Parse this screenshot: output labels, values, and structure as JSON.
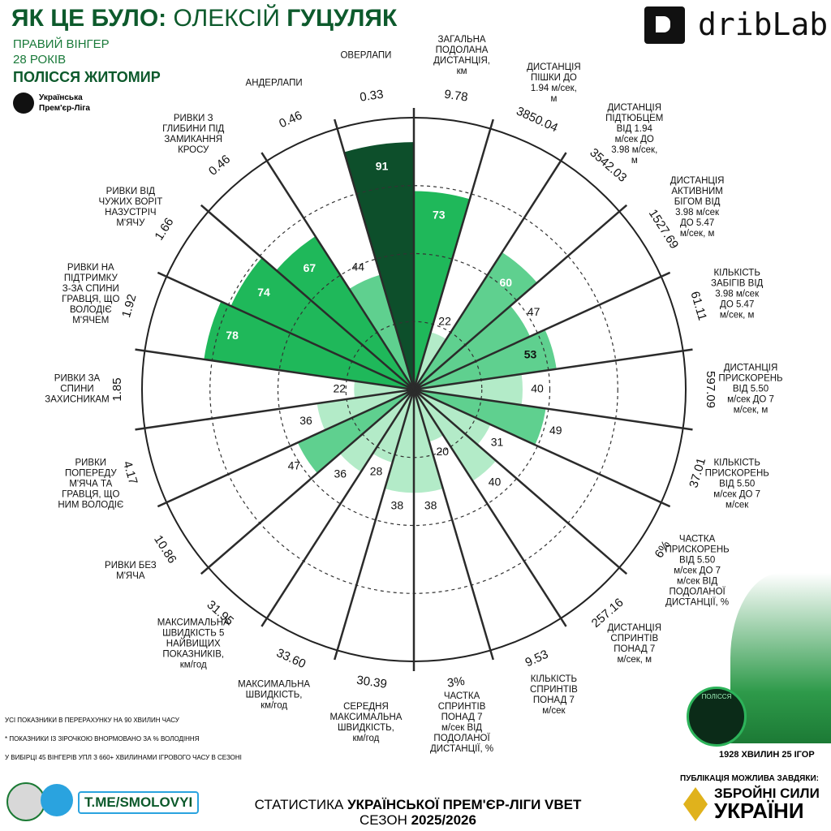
{
  "header": {
    "title_prefix": "ЯК ЦЕ БУЛО:",
    "first_name": "ОЛЕКСІЙ",
    "last_name": "ГУЦУЛЯК",
    "position": "ПРАВИЙ ВІНГЕР",
    "age": "28 РОКІВ",
    "team": "ПОЛІССЯ ЖИТОМИР",
    "league": "Українська Прем'єр-Ліга",
    "brand": "dribLab"
  },
  "chart_data": {
    "type": "radial_bar",
    "categories": [
      "ЗАГАЛЬНА\nПОДОЛАНА\nДИСТАНЦІЯ,\nкм",
      "ДИСТАНЦІЯ\nПІШКИ ДО\n1.94 м/сек,\nм",
      "ДИСТАНЦІЯ\nПІДТЮБЦЕМ\nВІД 1.94\nм/сек ДО\n3.98 м/сек,\nм",
      "ДИСТАНЦІЯ\nАКТИВНИМ\nБІГОМ ВІД\n3.98 м/сек\nДО 5.47\nм/сек, м",
      "КІЛЬКІСТЬ\nЗАБІГІВ ВІД\n3.98 м/сек\nДО 5.47\nм/сек, м",
      "ДИСТАНЦІЯ\nПРИСКОРЕНЬ\nВІД 5.50\nм/сек ДО 7\nм/сек, м",
      "КІЛЬКІСТЬ\nПРИСКОРЕНЬ\nВІД 5.50\nм/сек ДО 7\nм/сек",
      "ЧАСТКА\nПРИСКОРЕНЬ\nВІД 5.50\nм/сек ДО 7\nм/сек ВІД\nПОДОЛАНОЇ\nДИСТАНЦІЇ, %",
      "ДИСТАНЦІЯ\nСПРИНТІВ\nПОНАД 7\nм/сек, м",
      "КІЛЬКІСТЬ\nСПРИНТІВ\nПОНАД 7\nм/сек",
      "ЧАСТКА\nСПРИНТІВ\nПОНАД 7\nм/сек ВІД\nПОДОЛАНОЇ\nДИСТАНЦІЇ, %",
      "СЕРЕДНЯ\nМАКСИМАЛЬНА\nШВИДКІСТЬ,\nкм/год",
      "МАКСИМАЛЬНА\nШВИДКІСТЬ,\nкм/год",
      "МАКСИМАЛЬНА\nШВИДКІСТЬ 5\nНАЙВИЩИХ\nПОКАЗНИКІВ,\nкм/год",
      "РИВКИ БЕЗ\nМ'ЯЧА",
      "РИВКИ\nПОПЕРЕДУ\nМ'ЯЧА ТА\nГРАВЦЯ, ЩО\nНИМ ВОЛОДІЄ",
      "РИВКИ ЗА\nСПИНИ\nЗАХИСНИКАМ",
      "РИВКИ НА\nПІДТРИМКУ\nЗ-ЗА СПИНИ\nГРАВЦЯ, ЩО\nВОЛОДІЄ\nМ'ЯЧЕМ",
      "РИВКИ ВІД\nЧУЖИХ ВОРІТ\nНАЗУСТРІЧ\nМ'ЯЧУ",
      "РИВКИ З\nГЛИБИНИ ПІД\nЗАМИКАННЯ\nКРОСУ",
      "АНДЕРЛАПИ",
      "ОВЕРЛАПИ"
    ],
    "values": [
      73,
      22,
      60,
      47,
      53,
      40,
      49,
      31,
      40,
      20,
      38,
      38,
      28,
      36,
      47,
      36,
      22,
      78,
      74,
      67,
      44,
      91
    ],
    "colors": [
      "#1fb85a",
      "#b3ebc8",
      "#5fd08f",
      "#5fd08f",
      "#5fd08f",
      "#b3ebc8",
      "#5fd08f",
      "#b3ebc8",
      "#b3ebc8",
      "#b3ebc8",
      "#b3ebc8",
      "#b3ebc8",
      "#b3ebc8",
      "#b3ebc8",
      "#5fd08f",
      "#b3ebc8",
      "#b3ebc8",
      "#1fb85a",
      "#1fb85a",
      "#1fb85a",
      "#5fd08f",
      "#0d4f2b"
    ],
    "stat_labels": [
      "9.78",
      "3850.04",
      "3542.03",
      "1527.69",
      "61.11",
      "597.09",
      "37.01",
      "6%",
      "257.16",
      "9.53",
      "3%",
      "30.39",
      "33.60",
      "31.95",
      "10.86",
      "4.17",
      "1.85",
      "1.92",
      "1.66",
      "0.46",
      "0.46",
      "0.33"
    ],
    "rlim": [
      0,
      100
    ]
  },
  "footer": {
    "note1": "УСІ ПОКАЗНИКИ В ПЕРЕРАХУНКУ НА 90 ХВИЛИН ЧАСУ",
    "note2": "* ПОКАЗНИКИ ІЗ ЗІРОЧКОЮ ВНОРМОВАНО ЗА % ВОЛОДІННЯ",
    "note3": "У ВИБІРЦІ 45 ВІНГЕРІВ УПЛ З 660+ ХВИЛИНАМИ ІГРОВОГО ЧАСУ В СЕЗОНІ",
    "minutes": "1928 ХВИЛИН 25 ІГОР",
    "telegram": "T.ME/SMOLOVYI",
    "source_prefix": "СТАТИСТИКА",
    "source_name": "УКРАЇНСЬКОЇ ПРЕМ'ЄР-ЛІГИ VBET",
    "season_prefix": "СЕЗОН",
    "season": "2025/2026",
    "sponsor_intro": "ПУБЛІКАЦІЯ МОЖЛИВА ЗАВДЯКИ:",
    "sponsor_line1": "ЗБРОЙНІ СИЛИ",
    "sponsor_line2": "УКРАЇНИ",
    "club_badge": "ПОЛІССЯ"
  }
}
